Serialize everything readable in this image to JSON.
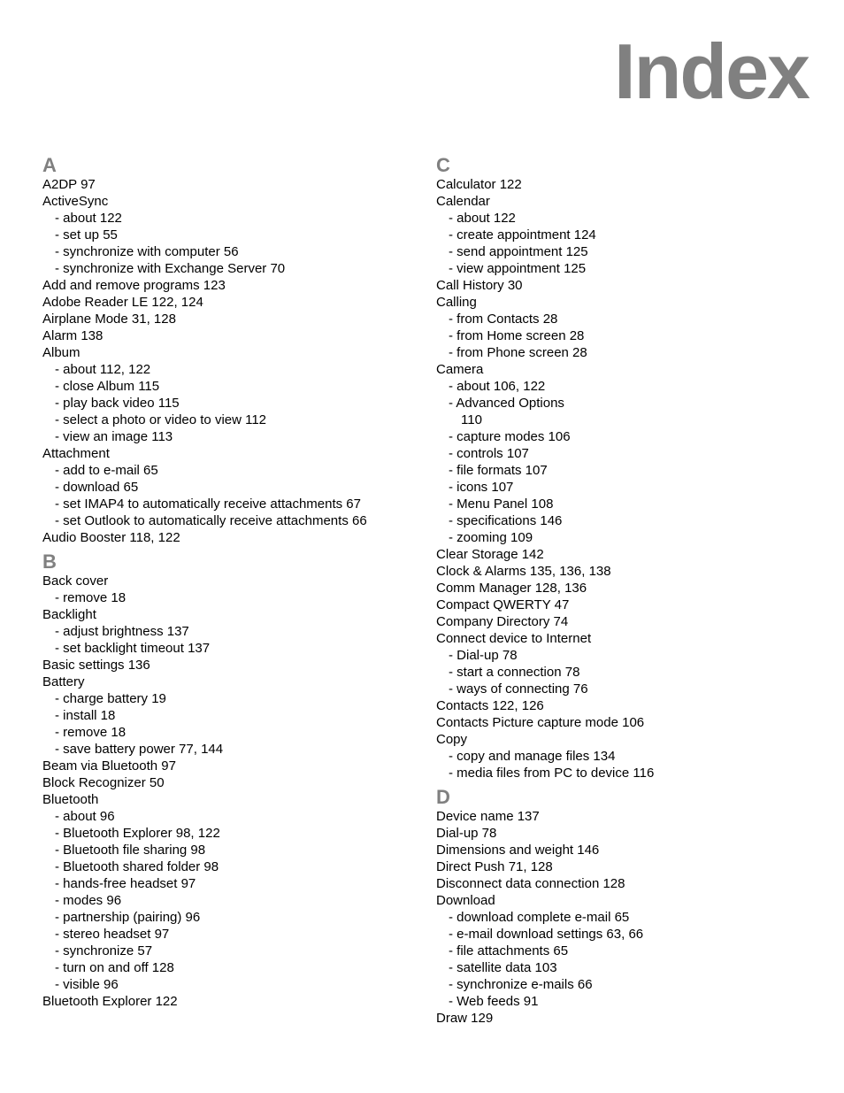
{
  "title": "Index",
  "colors": {
    "title_color": "#808080",
    "letter_color": "#808080",
    "text_color": "#000000",
    "background": "#ffffff"
  },
  "typography": {
    "title_fontsize": 88,
    "title_weight": 700,
    "letter_fontsize": 22,
    "letter_weight": 700,
    "entry_fontsize": 15,
    "line_height": 19,
    "font_family": "Segoe UI, Myriad Pro, Arial, sans-serif"
  },
  "left_column": [
    {
      "type": "letter",
      "text": "A"
    },
    {
      "type": "entry",
      "text": "A2DP  97"
    },
    {
      "type": "entry",
      "text": "ActiveSync"
    },
    {
      "type": "sub",
      "text": "- about  122"
    },
    {
      "type": "sub",
      "text": "- set up  55"
    },
    {
      "type": "sub",
      "text": "- synchronize with computer  56"
    },
    {
      "type": "sub",
      "text": "- synchronize with Exchange Server  70"
    },
    {
      "type": "entry",
      "text": "Add and remove programs  123"
    },
    {
      "type": "entry",
      "text": "Adobe Reader LE  122, 124"
    },
    {
      "type": "entry",
      "text": "Airplane Mode  31, 128"
    },
    {
      "type": "entry",
      "text": "Alarm  138"
    },
    {
      "type": "entry",
      "text": "Album"
    },
    {
      "type": "sub",
      "text": "- about  112, 122"
    },
    {
      "type": "sub",
      "text": "- close Album  115"
    },
    {
      "type": "sub",
      "text": "- play back video  115"
    },
    {
      "type": "sub",
      "text": "- select a photo or video to view  112"
    },
    {
      "type": "sub",
      "text": "- view an image  113"
    },
    {
      "type": "entry",
      "text": "Attachment"
    },
    {
      "type": "sub",
      "text": "- add to e-mail  65"
    },
    {
      "type": "sub",
      "text": "- download  65"
    },
    {
      "type": "sub",
      "text": "- set IMAP4 to automatically receive attachments  67"
    },
    {
      "type": "sub",
      "text": "- set Outlook to automatically receive attachments  66"
    },
    {
      "type": "entry",
      "text": "Audio Booster  118, 122"
    },
    {
      "type": "letter",
      "text": "B"
    },
    {
      "type": "entry",
      "text": "Back cover"
    },
    {
      "type": "sub",
      "text": "- remove  18"
    },
    {
      "type": "entry",
      "text": "Backlight"
    },
    {
      "type": "sub",
      "text": "- adjust brightness  137"
    },
    {
      "type": "sub",
      "text": "- set backlight timeout  137"
    },
    {
      "type": "entry",
      "text": "Basic settings  136"
    },
    {
      "type": "entry",
      "text": "Battery"
    },
    {
      "type": "sub",
      "text": "- charge battery  19"
    },
    {
      "type": "sub",
      "text": "- install  18"
    },
    {
      "type": "sub",
      "text": "- remove  18"
    },
    {
      "type": "sub",
      "text": "- save battery power  77, 144"
    },
    {
      "type": "entry",
      "text": "Beam via Bluetooth  97"
    },
    {
      "type": "entry",
      "text": "Block Recognizer  50"
    },
    {
      "type": "entry",
      "text": "Bluetooth"
    },
    {
      "type": "sub",
      "text": "- about  96"
    },
    {
      "type": "sub",
      "text": "- Bluetooth Explorer  98, 122"
    },
    {
      "type": "sub",
      "text": "- Bluetooth file sharing  98"
    },
    {
      "type": "sub",
      "text": "- Bluetooth shared folder  98"
    },
    {
      "type": "sub",
      "text": "- hands-free headset  97"
    },
    {
      "type": "sub",
      "text": "- modes  96"
    },
    {
      "type": "sub",
      "text": "- partnership (pairing)  96"
    },
    {
      "type": "sub",
      "text": "- stereo headset  97"
    },
    {
      "type": "sub",
      "text": "- synchronize  57"
    },
    {
      "type": "sub",
      "text": "- turn on and off  128"
    },
    {
      "type": "sub",
      "text": "- visible  96"
    },
    {
      "type": "entry",
      "text": "Bluetooth Explorer  122"
    }
  ],
  "right_column": [
    {
      "type": "letter",
      "text": "C"
    },
    {
      "type": "entry",
      "text": "Calculator  122"
    },
    {
      "type": "entry",
      "text": "Calendar"
    },
    {
      "type": "sub",
      "text": "- about  122"
    },
    {
      "type": "sub",
      "text": "- create appointment  124"
    },
    {
      "type": "sub",
      "text": "- send appointment  125"
    },
    {
      "type": "sub",
      "text": "- view appointment  125"
    },
    {
      "type": "entry",
      "text": "Call History  30"
    },
    {
      "type": "entry",
      "text": "Calling"
    },
    {
      "type": "sub",
      "text": "- from Contacts  28"
    },
    {
      "type": "sub",
      "text": "- from Home screen  28"
    },
    {
      "type": "sub",
      "text": "- from Phone screen  28"
    },
    {
      "type": "entry",
      "text": "Camera"
    },
    {
      "type": "sub",
      "text": "- about  106, 122"
    },
    {
      "type": "sub",
      "text": "- Advanced Options"
    },
    {
      "type": "sub2",
      "text": "110"
    },
    {
      "type": "sub",
      "text": "- capture modes  106"
    },
    {
      "type": "sub",
      "text": "- controls  107"
    },
    {
      "type": "sub",
      "text": "- file formats  107"
    },
    {
      "type": "sub",
      "text": "- icons  107"
    },
    {
      "type": "sub",
      "text": "- Menu Panel  108"
    },
    {
      "type": "sub",
      "text": "- specifications  146"
    },
    {
      "type": "sub",
      "text": "- zooming  109"
    },
    {
      "type": "entry",
      "text": "Clear Storage  142"
    },
    {
      "type": "entry",
      "text": "Clock & Alarms  135, 136, 138"
    },
    {
      "type": "entry",
      "text": "Comm Manager  128, 136"
    },
    {
      "type": "entry",
      "text": "Compact QWERTY  47"
    },
    {
      "type": "entry",
      "text": "Company Directory  74"
    },
    {
      "type": "entry",
      "text": "Connect device to Internet"
    },
    {
      "type": "sub",
      "text": "- Dial-up  78"
    },
    {
      "type": "sub",
      "text": "- start a connection  78"
    },
    {
      "type": "sub",
      "text": "- ways of connecting  76"
    },
    {
      "type": "entry",
      "text": "Contacts  122, 126"
    },
    {
      "type": "entry",
      "text": "Contacts Picture capture mode  106"
    },
    {
      "type": "entry",
      "text": "Copy"
    },
    {
      "type": "sub",
      "text": "- copy and manage files  134"
    },
    {
      "type": "sub",
      "text": "- media files from PC to device  116"
    },
    {
      "type": "letter",
      "text": "D"
    },
    {
      "type": "entry",
      "text": "Device name  137"
    },
    {
      "type": "entry",
      "text": "Dial-up  78"
    },
    {
      "type": "entry",
      "text": "Dimensions and weight  146"
    },
    {
      "type": "entry",
      "text": "Direct Push  71, 128"
    },
    {
      "type": "entry",
      "text": "Disconnect data connection  128"
    },
    {
      "type": "entry",
      "text": "Download"
    },
    {
      "type": "sub",
      "text": "- download complete e-mail  65"
    },
    {
      "type": "sub",
      "text": "- e-mail download settings  63, 66"
    },
    {
      "type": "sub",
      "text": "- file attachments  65"
    },
    {
      "type": "sub",
      "text": "- satellite data  103"
    },
    {
      "type": "sub",
      "text": "- synchronize e-mails  66"
    },
    {
      "type": "sub",
      "text": "- Web feeds  91"
    },
    {
      "type": "entry",
      "text": "Draw  129"
    }
  ]
}
